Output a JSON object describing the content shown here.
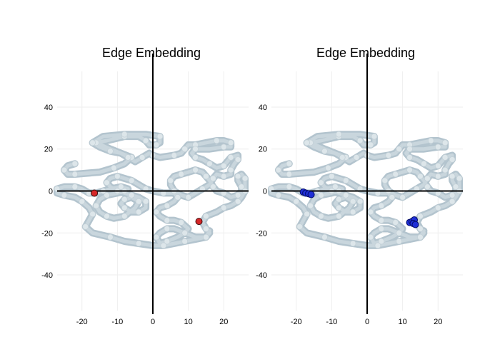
{
  "chart_data": [
    {
      "type": "scatter",
      "title": "Edge Embedding",
      "xlabel": "",
      "ylabel": "",
      "xlim": [
        -27,
        27
      ],
      "ylim": [
        -57,
        57
      ],
      "xticks": [
        -20,
        -10,
        0,
        10,
        20
      ],
      "yticks": [
        -40,
        -20,
        0,
        20,
        40
      ],
      "grid": true,
      "zero_lines": true,
      "colors": {
        "background_curve": "#b3c4ce",
        "highlight": "#d62728",
        "highlight_edge": "#3a0a0a"
      },
      "curve": [
        [
          -22,
          13
        ],
        [
          -24,
          12
        ],
        [
          -25,
          10
        ],
        [
          -24,
          8
        ],
        [
          -22,
          8
        ],
        [
          -15,
          9
        ],
        [
          -11,
          11
        ],
        [
          -8,
          13
        ],
        [
          -6,
          16
        ],
        [
          -12,
          20
        ],
        [
          -16,
          23
        ],
        [
          -13,
          24
        ],
        [
          -8,
          26
        ],
        [
          -4,
          26
        ],
        [
          -2,
          24
        ],
        [
          -1,
          22
        ],
        [
          1,
          22
        ],
        [
          2,
          23
        ],
        [
          2,
          26
        ],
        [
          -2,
          27
        ],
        [
          -8,
          27
        ],
        [
          -14,
          26
        ],
        [
          -17,
          23
        ],
        [
          -15,
          21
        ],
        [
          -12,
          19
        ],
        [
          -9,
          18
        ],
        [
          -7,
          16
        ],
        [
          -5,
          14
        ],
        [
          -3,
          16
        ],
        [
          -1,
          18
        ],
        [
          0,
          17
        ],
        [
          2,
          16
        ],
        [
          6,
          17
        ],
        [
          8,
          18
        ],
        [
          9,
          20
        ],
        [
          10,
          22
        ],
        [
          12,
          22
        ],
        [
          15,
          23
        ],
        [
          18,
          24
        ],
        [
          20,
          24
        ],
        [
          22,
          23
        ],
        [
          22,
          21
        ],
        [
          20,
          21
        ],
        [
          16,
          20
        ],
        [
          12,
          20
        ],
        [
          11,
          18
        ],
        [
          12,
          16
        ],
        [
          14,
          15
        ],
        [
          16,
          13
        ],
        [
          18,
          11
        ],
        [
          20,
          12
        ],
        [
          21,
          14
        ],
        [
          22,
          16
        ],
        [
          24,
          17
        ],
        [
          24,
          15
        ],
        [
          23,
          13
        ],
        [
          22,
          10
        ],
        [
          22,
          8
        ],
        [
          20,
          7
        ],
        [
          18,
          8
        ],
        [
          17,
          6
        ],
        [
          16,
          3
        ],
        [
          14,
          1
        ],
        [
          12,
          -1
        ],
        [
          10,
          -3
        ],
        [
          8,
          -2
        ],
        [
          6,
          0
        ],
        [
          5,
          3
        ],
        [
          5,
          5
        ],
        [
          6,
          7
        ],
        [
          8,
          8
        ],
        [
          10,
          9
        ],
        [
          12,
          10
        ],
        [
          14,
          9
        ],
        [
          15,
          7
        ],
        [
          16,
          5
        ],
        [
          17,
          2
        ],
        [
          18,
          0
        ],
        [
          20,
          -1
        ],
        [
          22,
          -3
        ],
        [
          24,
          -2
        ],
        [
          25,
          0
        ],
        [
          25,
          2
        ],
        [
          24,
          5
        ],
        [
          24,
          7
        ],
        [
          25,
          8
        ],
        [
          26,
          6
        ],
        [
          26,
          3
        ],
        [
          26,
          0
        ],
        [
          25,
          -3
        ],
        [
          24,
          -5
        ],
        [
          22,
          -7
        ],
        [
          20,
          -8
        ],
        [
          18,
          -10
        ],
        [
          15,
          -12
        ],
        [
          14,
          -15
        ],
        [
          15,
          -18
        ],
        [
          16,
          -20
        ],
        [
          15,
          -22
        ],
        [
          12,
          -22
        ],
        [
          9,
          -20
        ],
        [
          6,
          -18
        ],
        [
          4,
          -18
        ],
        [
          2,
          -20
        ],
        [
          1,
          -22
        ],
        [
          2,
          -25
        ],
        [
          4,
          -24
        ],
        [
          7,
          -22
        ],
        [
          9,
          -20
        ],
        [
          10,
          -18
        ],
        [
          8,
          -15
        ],
        [
          6,
          -14
        ],
        [
          4,
          -14
        ],
        [
          2,
          -12
        ],
        [
          1,
          -10
        ],
        [
          2,
          -8
        ],
        [
          4,
          -7
        ],
        [
          6,
          -5
        ],
        [
          7,
          -3
        ],
        [
          6,
          -1
        ],
        [
          3,
          -1
        ],
        [
          0,
          0
        ],
        [
          -2,
          1
        ],
        [
          -4,
          3
        ],
        [
          -6,
          5
        ],
        [
          -8,
          6
        ],
        [
          -10,
          7
        ],
        [
          -12,
          6
        ],
        [
          -13,
          4
        ],
        [
          -12,
          2
        ],
        [
          -10,
          0
        ],
        [
          -8,
          -1
        ],
        [
          -6,
          -2
        ],
        [
          -4,
          -3
        ],
        [
          -2,
          -5
        ],
        [
          -2,
          -8
        ],
        [
          -4,
          -10
        ],
        [
          -6,
          -10
        ],
        [
          -8,
          -8
        ],
        [
          -9,
          -6
        ],
        [
          -8,
          -4
        ],
        [
          -6,
          -3
        ],
        [
          -4,
          -5
        ],
        [
          -5,
          -8
        ],
        [
          -8,
          -12
        ],
        [
          -11,
          -13
        ],
        [
          -13,
          -12
        ],
        [
          -15,
          -10
        ],
        [
          -16,
          -7
        ],
        [
          -15,
          -4
        ],
        [
          -13,
          -2
        ],
        [
          -10,
          -1
        ],
        [
          -8,
          0
        ],
        [
          -7,
          1
        ],
        [
          -9,
          2
        ],
        [
          -12,
          1
        ],
        [
          -14,
          0
        ],
        [
          -16,
          -1
        ],
        [
          -18,
          -1
        ],
        [
          -20,
          1
        ],
        [
          -22,
          2
        ],
        [
          -25,
          2
        ],
        [
          -27,
          1
        ],
        [
          -27,
          -1
        ],
        [
          -25,
          -2
        ],
        [
          -22,
          -3
        ],
        [
          -20,
          -5
        ],
        [
          -18,
          -8
        ],
        [
          -17,
          -11
        ],
        [
          -18,
          -14
        ],
        [
          -19,
          -17
        ],
        [
          -17,
          -20
        ],
        [
          -12,
          -22
        ],
        [
          -8,
          -24
        ],
        [
          -4,
          -25
        ],
        [
          0,
          -26
        ],
        [
          3,
          -26
        ],
        [
          6,
          -25
        ],
        [
          9,
          -24
        ],
        [
          12,
          -23
        ],
        [
          15,
          -22
        ],
        [
          16,
          -19
        ]
      ],
      "highlights": [
        {
          "x": -16.5,
          "y": -1
        },
        {
          "x": 13,
          "y": -14.5
        }
      ]
    },
    {
      "type": "scatter",
      "title": "Edge Embedding",
      "xlabel": "",
      "ylabel": "",
      "xlim": [
        -27,
        27
      ],
      "ylim": [
        -57,
        57
      ],
      "xticks": [
        -20,
        -10,
        0,
        10,
        20
      ],
      "yticks": [
        -40,
        -20,
        0,
        20,
        40
      ],
      "grid": true,
      "zero_lines": true,
      "colors": {
        "background_curve": "#b3c4ce",
        "highlight": "#1f2fd6",
        "highlight_edge": "#000a66"
      },
      "curve": [
        [
          -22,
          13
        ],
        [
          -24,
          12
        ],
        [
          -25,
          10
        ],
        [
          -24,
          8
        ],
        [
          -22,
          8
        ],
        [
          -15,
          9
        ],
        [
          -11,
          11
        ],
        [
          -8,
          13
        ],
        [
          -6,
          16
        ],
        [
          -12,
          20
        ],
        [
          -16,
          23
        ],
        [
          -13,
          24
        ],
        [
          -8,
          26
        ],
        [
          -4,
          26
        ],
        [
          -2,
          24
        ],
        [
          -1,
          22
        ],
        [
          1,
          22
        ],
        [
          2,
          23
        ],
        [
          2,
          26
        ],
        [
          -2,
          27
        ],
        [
          -8,
          27
        ],
        [
          -14,
          26
        ],
        [
          -17,
          23
        ],
        [
          -15,
          21
        ],
        [
          -12,
          19
        ],
        [
          -9,
          18
        ],
        [
          -7,
          16
        ],
        [
          -5,
          14
        ],
        [
          -3,
          16
        ],
        [
          -1,
          18
        ],
        [
          0,
          17
        ],
        [
          2,
          16
        ],
        [
          6,
          17
        ],
        [
          8,
          18
        ],
        [
          9,
          20
        ],
        [
          10,
          22
        ],
        [
          12,
          22
        ],
        [
          15,
          23
        ],
        [
          18,
          24
        ],
        [
          20,
          24
        ],
        [
          22,
          23
        ],
        [
          22,
          21
        ],
        [
          20,
          21
        ],
        [
          16,
          20
        ],
        [
          12,
          20
        ],
        [
          11,
          18
        ],
        [
          12,
          16
        ],
        [
          14,
          15
        ],
        [
          16,
          13
        ],
        [
          18,
          11
        ],
        [
          20,
          12
        ],
        [
          21,
          14
        ],
        [
          22,
          16
        ],
        [
          24,
          17
        ],
        [
          24,
          15
        ],
        [
          23,
          13
        ],
        [
          22,
          10
        ],
        [
          22,
          8
        ],
        [
          20,
          7
        ],
        [
          18,
          8
        ],
        [
          17,
          6
        ],
        [
          16,
          3
        ],
        [
          14,
          1
        ],
        [
          12,
          -1
        ],
        [
          10,
          -3
        ],
        [
          8,
          -2
        ],
        [
          6,
          0
        ],
        [
          5,
          3
        ],
        [
          5,
          5
        ],
        [
          6,
          7
        ],
        [
          8,
          8
        ],
        [
          10,
          9
        ],
        [
          12,
          10
        ],
        [
          14,
          9
        ],
        [
          15,
          7
        ],
        [
          16,
          5
        ],
        [
          17,
          2
        ],
        [
          18,
          0
        ],
        [
          20,
          -1
        ],
        [
          22,
          -3
        ],
        [
          24,
          -2
        ],
        [
          25,
          0
        ],
        [
          25,
          2
        ],
        [
          24,
          5
        ],
        [
          24,
          7
        ],
        [
          25,
          8
        ],
        [
          26,
          6
        ],
        [
          26,
          3
        ],
        [
          26,
          0
        ],
        [
          25,
          -3
        ],
        [
          24,
          -5
        ],
        [
          22,
          -7
        ],
        [
          20,
          -8
        ],
        [
          18,
          -10
        ],
        [
          15,
          -12
        ],
        [
          14,
          -15
        ],
        [
          15,
          -18
        ],
        [
          16,
          -20
        ],
        [
          15,
          -22
        ],
        [
          12,
          -22
        ],
        [
          9,
          -20
        ],
        [
          6,
          -18
        ],
        [
          4,
          -18
        ],
        [
          2,
          -20
        ],
        [
          1,
          -22
        ],
        [
          2,
          -25
        ],
        [
          4,
          -24
        ],
        [
          7,
          -22
        ],
        [
          9,
          -20
        ],
        [
          10,
          -18
        ],
        [
          8,
          -15
        ],
        [
          6,
          -14
        ],
        [
          4,
          -14
        ],
        [
          2,
          -12
        ],
        [
          1,
          -10
        ],
        [
          2,
          -8
        ],
        [
          4,
          -7
        ],
        [
          6,
          -5
        ],
        [
          7,
          -3
        ],
        [
          6,
          -1
        ],
        [
          3,
          -1
        ],
        [
          0,
          0
        ],
        [
          -2,
          1
        ],
        [
          -4,
          3
        ],
        [
          -6,
          5
        ],
        [
          -8,
          6
        ],
        [
          -10,
          7
        ],
        [
          -12,
          6
        ],
        [
          -13,
          4
        ],
        [
          -12,
          2
        ],
        [
          -10,
          0
        ],
        [
          -8,
          -1
        ],
        [
          -6,
          -2
        ],
        [
          -4,
          -3
        ],
        [
          -2,
          -5
        ],
        [
          -2,
          -8
        ],
        [
          -4,
          -10
        ],
        [
          -6,
          -10
        ],
        [
          -8,
          -8
        ],
        [
          -9,
          -6
        ],
        [
          -8,
          -4
        ],
        [
          -6,
          -3
        ],
        [
          -4,
          -5
        ],
        [
          -5,
          -8
        ],
        [
          -8,
          -12
        ],
        [
          -11,
          -13
        ],
        [
          -13,
          -12
        ],
        [
          -15,
          -10
        ],
        [
          -16,
          -7
        ],
        [
          -15,
          -4
        ],
        [
          -13,
          -2
        ],
        [
          -10,
          -1
        ],
        [
          -8,
          0
        ],
        [
          -7,
          1
        ],
        [
          -9,
          2
        ],
        [
          -12,
          1
        ],
        [
          -14,
          0
        ],
        [
          -16,
          -1
        ],
        [
          -18,
          -1
        ],
        [
          -20,
          1
        ],
        [
          -22,
          2
        ],
        [
          -25,
          2
        ],
        [
          -27,
          1
        ],
        [
          -27,
          -1
        ],
        [
          -25,
          -2
        ],
        [
          -22,
          -3
        ],
        [
          -20,
          -5
        ],
        [
          -18,
          -8
        ],
        [
          -17,
          -11
        ],
        [
          -18,
          -14
        ],
        [
          -19,
          -17
        ],
        [
          -17,
          -20
        ],
        [
          -12,
          -22
        ],
        [
          -8,
          -24
        ],
        [
          -4,
          -25
        ],
        [
          0,
          -26
        ],
        [
          3,
          -26
        ],
        [
          6,
          -25
        ],
        [
          9,
          -24
        ],
        [
          12,
          -23
        ],
        [
          15,
          -22
        ],
        [
          16,
          -19
        ]
      ],
      "highlights": [
        {
          "x": -18,
          "y": -0.5
        },
        {
          "x": -17.3,
          "y": -1
        },
        {
          "x": -16.5,
          "y": -1.3
        },
        {
          "x": -15.8,
          "y": -1.7
        },
        {
          "x": 12,
          "y": -15
        },
        {
          "x": 12.7,
          "y": -14.5
        },
        {
          "x": 13.3,
          "y": -13.8
        },
        {
          "x": 13,
          "y": -15.5
        },
        {
          "x": 13.6,
          "y": -16
        }
      ]
    }
  ]
}
